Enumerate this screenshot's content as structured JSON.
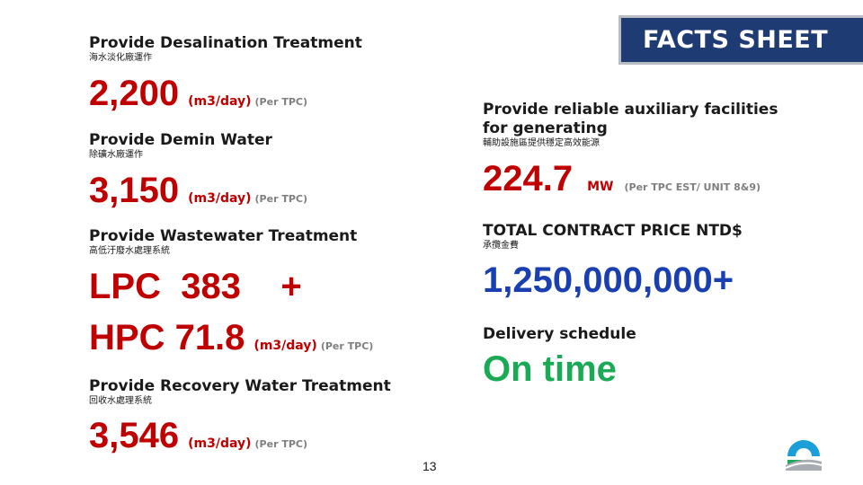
{
  "banner": {
    "title": "FACTS SHEET"
  },
  "desalination": {
    "title": "Provide Desalination Treatment",
    "subtitle": "海水淡化廠運作",
    "value": "2,200",
    "unit": "(m3/day)",
    "note": "(Per TPC)"
  },
  "demin": {
    "title": "Provide Demin Water",
    "subtitle": "除礦水廠運作",
    "value": "3,150",
    "unit": "(m3/day)",
    "note": "(Per TPC)"
  },
  "wastewater": {
    "title": "Provide Wastewater Treatment",
    "subtitle": "高低汙廢水處理系統",
    "line1": "LPC  383    +",
    "line2": "HPC 71.8",
    "unit": "(m3/day)",
    "note": "(Per TPC)"
  },
  "recovery": {
    "title": "Provide Recovery Water Treatment",
    "subtitle": "回收水處理系統",
    "value": "3,546",
    "unit": "(m3/day)",
    "note": "(Per TPC)"
  },
  "auxiliary": {
    "title_line1": "Provide reliable auxiliary facilities",
    "title_line2": "for generating",
    "subtitle": "輔助設施區提供穩定高效能源",
    "value": "224.7",
    "unit": "MW",
    "note": "(Per TPC EST/ UNIT 8&9)"
  },
  "contract": {
    "title": "TOTAL CONTRACT PRICE NTD$",
    "subtitle": "承攬金費",
    "value": "1,250,000,000+"
  },
  "delivery": {
    "title": "Delivery schedule",
    "value": "On time"
  },
  "page_number": "13",
  "colors": {
    "accent_red": "#c00000",
    "accent_blue": "#1a3fb0",
    "accent_green": "#1aaa55",
    "banner_bg": "#1f3b73"
  },
  "logo": {
    "icon": "company-logo-icon"
  }
}
